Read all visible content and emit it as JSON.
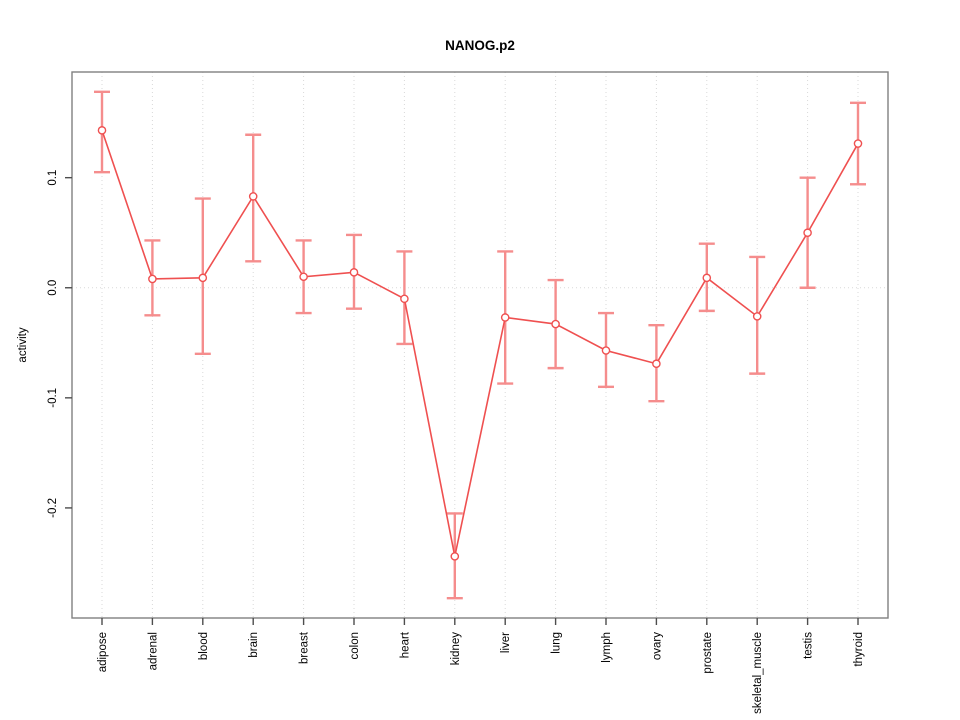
{
  "title": "NANOG.p2",
  "chart_data": {
    "type": "line",
    "title": "NANOG.p2",
    "xlabel": "",
    "ylabel": "activity",
    "categories": [
      "adipose",
      "adrenal",
      "blood",
      "brain",
      "breast",
      "colon",
      "heart",
      "kidney",
      "liver",
      "lung",
      "lymph",
      "ovary",
      "prostate",
      "skeletal_muscle",
      "testis",
      "thyroid"
    ],
    "values": [
      0.143,
      0.008,
      0.009,
      0.083,
      0.01,
      0.014,
      -0.01,
      -0.244,
      -0.027,
      -0.033,
      -0.057,
      -0.069,
      0.009,
      -0.026,
      0.05,
      0.131
    ],
    "err_high": [
      0.178,
      0.043,
      0.081,
      0.139,
      0.043,
      0.048,
      0.033,
      -0.205,
      0.033,
      0.007,
      -0.023,
      -0.034,
      0.04,
      0.028,
      0.1,
      0.168
    ],
    "err_low": [
      0.105,
      -0.025,
      -0.06,
      0.024,
      -0.023,
      -0.019,
      -0.051,
      -0.282,
      -0.087,
      -0.073,
      -0.09,
      -0.103,
      -0.021,
      -0.078,
      0.0,
      0.094
    ],
    "yticks": [
      "0.1",
      "0.0",
      "-0.1",
      "-0.2"
    ],
    "ytick_values": [
      0.1,
      0.0,
      -0.1,
      -0.2
    ],
    "ylim": [
      -0.3,
      0.196
    ],
    "grid": "dotted vertical gridline at each category; dotted horizontal line at 0",
    "legend": "none",
    "point_style": "open-circle",
    "colors": {
      "line": "#ef5050",
      "point": "#ef5050",
      "error_bar": "#f58d8d",
      "grid": "#d9d9d9",
      "box": "#808080",
      "tick": "#4d4d4d",
      "text": "#000000"
    }
  }
}
